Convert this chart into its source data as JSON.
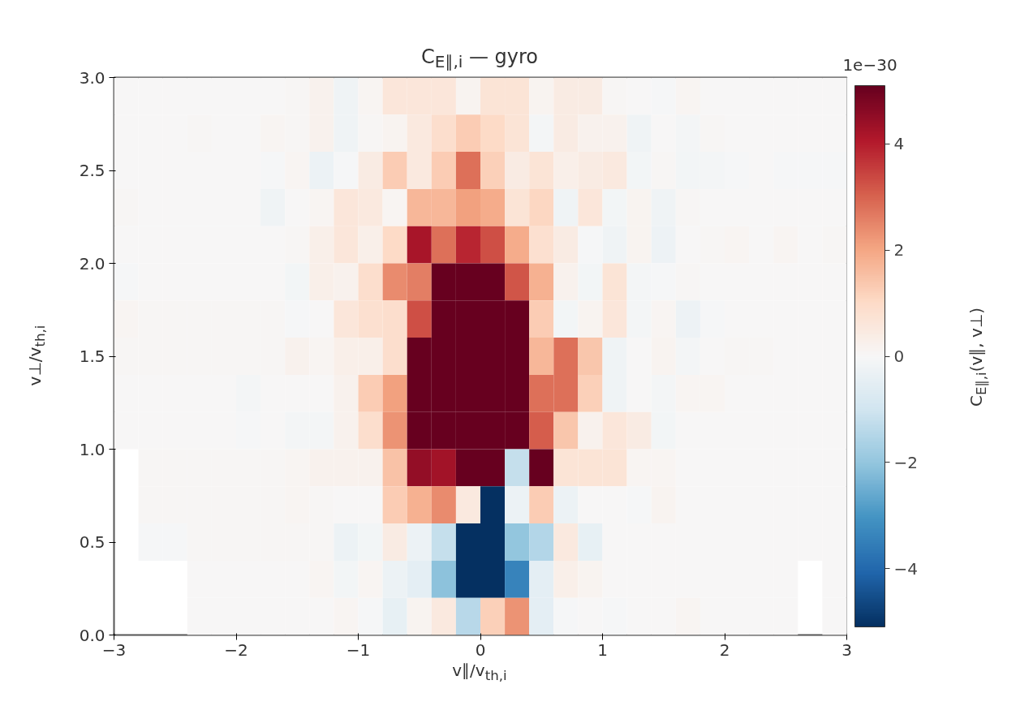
{
  "chart_data": {
    "type": "heatmap",
    "title": "C$_{E∥,i}$ — gyro",
    "xlabel": "v∥/v$_{th,i}$",
    "ylabel": "v⊥/v$_{th,i}$",
    "clabel": "C$_{E∥,i}$(v∥, v⊥)",
    "annotations": [
      "1e−30"
    ],
    "x": [
      -2.9,
      -2.7,
      -2.5,
      -2.3,
      -2.1,
      -1.9,
      -1.7,
      -1.5,
      -1.3,
      -1.1,
      -0.9,
      -0.7,
      -0.5,
      -0.3,
      -0.1,
      0.1,
      0.3,
      0.5,
      0.7,
      0.9,
      1.1,
      1.3,
      1.5,
      1.7,
      1.9,
      2.1,
      2.3,
      2.5,
      2.7,
      2.9
    ],
    "y": [
      2.9,
      2.7,
      2.5,
      2.3,
      2.1,
      1.9,
      1.7,
      1.5,
      1.3,
      1.1,
      0.9,
      0.7,
      0.5,
      0.3,
      0.1
    ],
    "xlim": [
      -3,
      3
    ],
    "ylim": [
      0,
      3
    ],
    "xticks": [
      {
        "value": -3,
        "label": "−3"
      },
      {
        "value": -2,
        "label": "−2"
      },
      {
        "value": -1,
        "label": "−1"
      },
      0,
      1,
      2,
      3
    ],
    "yticks": [
      {
        "value": 0,
        "label": "0.0"
      },
      {
        "value": 0.5,
        "label": "0.5"
      },
      {
        "value": 1,
        "label": "1.0"
      },
      {
        "value": 1.5,
        "label": "1.5"
      },
      {
        "value": 2,
        "label": "2.0"
      },
      {
        "value": 2.5,
        "label": "2.5"
      },
      {
        "value": 3,
        "label": "3.0"
      }
    ],
    "clim": [
      -5.1,
      5.1
    ],
    "cticks": [
      {
        "value": -4,
        "label": "−4"
      },
      {
        "value": -2,
        "label": "−2"
      },
      0,
      2,
      4
    ],
    "cells": [
      [
        0,
        0,
        0,
        0,
        0,
        0,
        0,
        0.05,
        0.2,
        -0.2,
        0.1,
        0.6,
        0.6,
        0.6,
        0.15,
        0.7,
        0.7,
        0.15,
        0.4,
        0.4,
        0.05,
        0,
        -0.05,
        0.1,
        0,
        0,
        0,
        0,
        0,
        0
      ],
      [
        0,
        0,
        0,
        0.05,
        0,
        0,
        0.1,
        0.05,
        0.2,
        -0.2,
        0.05,
        0.15,
        0.5,
        0.9,
        1.3,
        1.0,
        0.7,
        -0.1,
        0.4,
        0.2,
        0.2,
        -0.2,
        0,
        -0.1,
        0.05,
        0,
        0,
        0,
        0,
        0
      ],
      [
        0,
        0,
        0,
        0,
        0,
        0,
        -0.05,
        0.1,
        -0.3,
        -0.05,
        0.4,
        1.3,
        0.5,
        1.3,
        2.8,
        1.2,
        0.4,
        0.7,
        0.3,
        0.4,
        0.5,
        -0.15,
        0.05,
        -0.15,
        -0.1,
        -0.05,
        0,
        -0.05,
        -0.05,
        -0.05
      ],
      [
        0.05,
        0,
        0,
        0,
        0,
        0,
        -0.2,
        0,
        0.1,
        0.6,
        0.5,
        0.1,
        1.7,
        1.7,
        2.1,
        1.9,
        0.7,
        1.1,
        -0.2,
        0.6,
        -0.15,
        0.15,
        -0.2,
        0.05,
        0,
        0,
        0,
        0,
        0,
        0
      ],
      [
        0,
        0,
        0,
        0,
        0,
        0,
        0,
        0.05,
        0.3,
        0.6,
        0.3,
        1.0,
        4.2,
        2.8,
        3.9,
        3.3,
        1.9,
        0.8,
        0.4,
        -0.05,
        -0.2,
        0.15,
        -0.25,
        0,
        0.05,
        0.1,
        0,
        0.1,
        0,
        0.05
      ],
      [
        -0.05,
        0,
        0,
        0,
        0,
        0,
        0,
        -0.15,
        0.3,
        0.2,
        0.9,
        2.4,
        2.6,
        5.1,
        5.1,
        5.1,
        3.2,
        1.8,
        0.2,
        -0.15,
        0.7,
        -0.1,
        -0.05,
        0.05,
        0,
        0,
        0,
        0,
        0,
        0
      ],
      [
        0.1,
        0.05,
        0.05,
        0.05,
        0.05,
        0.05,
        0.05,
        -0.05,
        0,
        0.6,
        0.8,
        0.9,
        3.3,
        5.1,
        5.1,
        5.1,
        5.1,
        1.3,
        -0.15,
        0.15,
        0.6,
        -0.1,
        0.1,
        -0.25,
        -0.05,
        0,
        0,
        0,
        0,
        0
      ],
      [
        0.05,
        0.05,
        0.05,
        0.05,
        0.05,
        0.05,
        0.05,
        0.2,
        0.1,
        0.3,
        0.3,
        0.9,
        5.1,
        5.1,
        5.1,
        5.1,
        5.1,
        1.7,
        2.8,
        1.4,
        -0.2,
        0,
        0.15,
        -0.1,
        0,
        0.05,
        0.05,
        0,
        0,
        0
      ],
      [
        0,
        0,
        0,
        0,
        0,
        -0.1,
        0,
        0,
        0,
        0.2,
        1.3,
        2.1,
        5.1,
        5.1,
        5.1,
        5.1,
        5.1,
        2.8,
        2.8,
        1.2,
        -0.2,
        0,
        -0.1,
        0.1,
        0.1,
        0,
        0,
        0,
        0,
        0
      ],
      [
        0,
        0,
        0,
        0,
        0,
        -0.05,
        0,
        -0.1,
        -0.1,
        0.2,
        0.9,
        2.3,
        5.1,
        5.1,
        5.1,
        5.1,
        5.1,
        3.1,
        1.4,
        0.2,
        0.6,
        0.4,
        -0.15,
        0,
        0,
        0,
        0,
        0,
        0,
        0
      ],
      [
        null,
        0.05,
        0.05,
        0.05,
        0.05,
        0.05,
        0.05,
        0.1,
        0.2,
        0.2,
        0.2,
        1.5,
        4.5,
        4.3,
        5.1,
        5.1,
        -1.2,
        5.1,
        0.7,
        0.7,
        0.7,
        0.1,
        0.1,
        0,
        0,
        0,
        0,
        0,
        0,
        0
      ],
      [
        null,
        0.05,
        0.05,
        0.05,
        0.05,
        0.05,
        0.05,
        0.1,
        0.05,
        0,
        0,
        1.3,
        1.8,
        2.4,
        0.5,
        -5.1,
        -0.3,
        1.3,
        -0.3,
        0,
        0,
        -0.05,
        0.15,
        0,
        0,
        0,
        0,
        0,
        0,
        0
      ],
      [
        null,
        -0.05,
        -0.05,
        0.05,
        0.05,
        0.05,
        0.05,
        0.05,
        0.05,
        -0.3,
        -0.15,
        0.4,
        -0.3,
        -1.2,
        -5.1,
        -5.1,
        -2.0,
        -1.5,
        0.5,
        -0.4,
        0,
        0,
        0,
        0,
        0,
        0,
        0,
        0,
        0,
        0
      ],
      [
        null,
        null,
        null,
        0,
        0,
        0,
        0,
        0,
        0.1,
        -0.15,
        0.1,
        -0.3,
        -0.5,
        -2.1,
        -5.1,
        -5.1,
        -3.4,
        -0.5,
        0.3,
        0.15,
        0,
        0,
        0,
        0,
        0,
        0,
        0,
        0,
        null,
        0
      ],
      [
        null,
        null,
        null,
        0,
        0,
        0,
        0,
        0,
        0,
        0.1,
        -0.05,
        -0.4,
        0.15,
        0.5,
        -1.4,
        1.2,
        2.3,
        -0.5,
        -0.05,
        0,
        -0.05,
        0,
        0,
        0.1,
        0,
        0,
        0,
        0,
        null,
        0
      ]
    ]
  }
}
